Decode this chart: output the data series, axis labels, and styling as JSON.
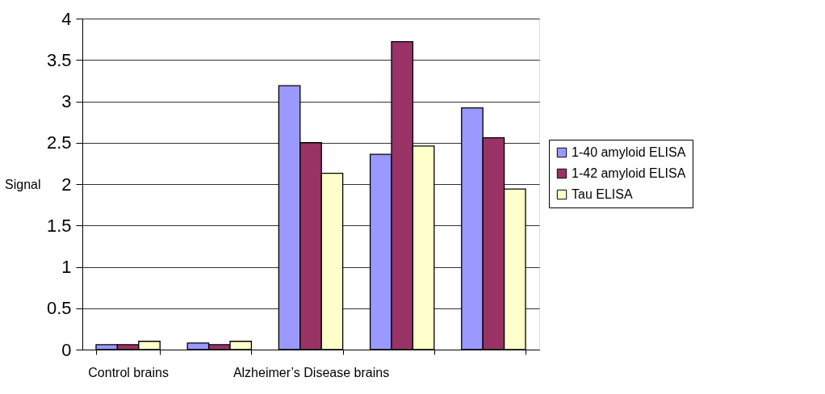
{
  "chart_data": {
    "type": "bar",
    "ylabel": "Signal",
    "categories": [
      "Control brains",
      null,
      "Alzheimer’s Disease brains",
      null,
      null
    ],
    "series": [
      {
        "name": "1-40 amyloid ELISA",
        "color": "#9999ff",
        "values": [
          0.06,
          0.08,
          3.19,
          2.36,
          2.92
        ]
      },
      {
        "name": "1-42 amyloid ELISA",
        "color": "#993366",
        "values": [
          0.06,
          0.06,
          2.5,
          3.72,
          2.56
        ]
      },
      {
        "name": "Tau ELISA",
        "color": "#ffffcc",
        "values": [
          0.1,
          0.1,
          2.13,
          2.46,
          1.94
        ]
      }
    ],
    "ylim": [
      0,
      4
    ],
    "yticks": [
      0,
      0.5,
      1,
      1.5,
      2,
      2.5,
      3,
      3.5,
      4
    ],
    "grid": "y",
    "legend": "right"
  }
}
